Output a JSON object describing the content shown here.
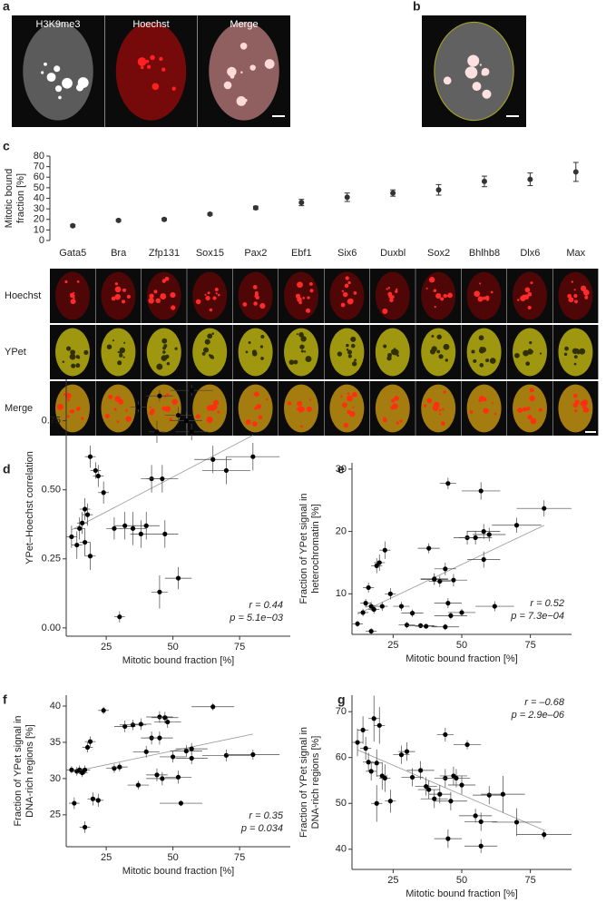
{
  "panel_labels": [
    "a",
    "b",
    "c",
    "d",
    "e",
    "f",
    "g"
  ],
  "images": {
    "a_labels": [
      "H3K9me3",
      "Hoechst",
      "Merge"
    ],
    "c_rows": [
      "Hoechst",
      "YPet",
      "Merge"
    ]
  },
  "chart_data": [
    {
      "type": "dot",
      "ylabel": [
        "Mitotic bound",
        "fraction [%]"
      ],
      "categories": [
        "Gata5",
        "Bra",
        "Zfp131",
        "Sox15",
        "Pax2",
        "Ebf1",
        "Six6",
        "Duxbl",
        "Sox2",
        "Bhlhb8",
        "Dlx6",
        "Max"
      ],
      "values": [
        14,
        19,
        20,
        25,
        31,
        36,
        41,
        45,
        48,
        56,
        58,
        65
      ],
      "errors": [
        1,
        1,
        1,
        1,
        1.5,
        3,
        4,
        3,
        5,
        5,
        6,
        9
      ],
      "color": "#333333",
      "ylim": [
        0,
        80
      ],
      "yticks": [
        0,
        10,
        20,
        30,
        40,
        50,
        60,
        70,
        80
      ]
    },
    {
      "type": "scatter",
      "xlabel": "Mitotic bound fraction [%]",
      "ylabel": [
        "YPet–Hoechst correlation"
      ],
      "x": [
        12,
        14,
        15,
        16,
        17,
        17,
        18,
        19,
        19,
        21,
        22,
        24,
        28,
        30,
        32,
        35,
        37,
        38,
        40,
        42,
        44,
        45,
        45,
        46,
        47,
        52,
        52,
        55,
        57,
        57,
        65,
        70,
        80
      ],
      "y": [
        0.33,
        0.3,
        0.36,
        0.38,
        0.31,
        0.43,
        0.41,
        0.26,
        0.62,
        0.57,
        0.55,
        0.49,
        0.36,
        0.04,
        0.37,
        0.36,
        0.8,
        0.34,
        0.37,
        0.54,
        0.71,
        0.84,
        0.13,
        0.54,
        0.34,
        0.18,
        0.77,
        0.75,
        0.86,
        0.71,
        0.61,
        0.57,
        0.62
      ],
      "xerr": [
        2,
        2,
        2,
        2,
        2,
        2,
        2,
        2,
        2,
        2,
        2,
        2,
        3,
        2,
        4,
        5,
        3,
        4,
        5,
        4,
        3,
        5,
        3,
        6,
        5,
        5,
        5,
        6,
        8,
        6,
        7,
        9,
        10
      ],
      "yerr": [
        0.04,
        0.05,
        0.04,
        0.04,
        0.05,
        0.04,
        0.04,
        0.05,
        0.04,
        0.03,
        0.04,
        0.04,
        0.04,
        0.02,
        0.05,
        0.06,
        0.02,
        0.05,
        0.05,
        0.05,
        0.04,
        0.02,
        0.06,
        0.05,
        0.05,
        0.04,
        0.03,
        0.03,
        0.02,
        0.03,
        0.05,
        0.05,
        0.05
      ],
      "color": "#000000",
      "xlim": [
        10,
        94
      ],
      "ylim": [
        -0.03,
        0.9
      ],
      "xticks": [
        25,
        50,
        75
      ],
      "yticks": [
        {
          "value": 0,
          "label": "0.00"
        },
        0.25,
        {
          "value": 0.5,
          "label": "0.50"
        },
        0.75
      ],
      "annotations": [
        "r = 0.44",
        "p = 5.1e−03"
      ]
    },
    {
      "type": "scatter",
      "xlabel": "Mitotic bound fraction [%]",
      "ylabel": [
        "Fraction of YPet signal in",
        "heterochromatin [%]"
      ],
      "x": [
        12,
        14,
        15,
        16,
        17,
        17,
        18,
        19,
        20,
        21,
        22,
        24,
        28,
        30,
        32,
        35,
        37,
        38,
        40,
        40,
        42,
        44,
        44,
        45,
        45,
        46,
        47,
        50,
        52,
        55,
        57,
        58,
        58,
        60,
        62,
        70,
        80
      ],
      "y": [
        5.2,
        7,
        8.5,
        11,
        4,
        8,
        7.5,
        14.5,
        15,
        8,
        17,
        10,
        8,
        5,
        6.9,
        4.9,
        4.8,
        17.3,
        12.3,
        12.4,
        12,
        14,
        4.7,
        8.5,
        27.7,
        6.5,
        12.2,
        7,
        19,
        19,
        26.5,
        20,
        15.5,
        19.5,
        8,
        21,
        23.7
      ],
      "xerr": [
        2,
        2,
        2,
        2,
        2,
        2,
        2,
        2,
        2,
        2,
        2,
        2,
        3,
        3,
        4,
        5,
        4,
        4,
        5,
        5,
        4,
        4,
        5,
        5,
        3,
        6,
        5,
        5,
        5,
        6,
        7,
        6,
        6,
        6,
        7,
        9,
        10
      ],
      "yerr": [
        0.5,
        0.6,
        0.7,
        0.8,
        0.5,
        0.7,
        0.7,
        1.2,
        1.3,
        0.7,
        1.4,
        0.9,
        0.7,
        0.5,
        0.6,
        0.4,
        0.4,
        0.8,
        0.9,
        0.9,
        0.9,
        1,
        0.5,
        0.8,
        0.9,
        0.6,
        1,
        0.6,
        1.1,
        1.1,
        1.4,
        1.2,
        1.3,
        1.1,
        0.8,
        1.2,
        1.3
      ],
      "color": "#000000",
      "xlim": [
        10,
        90
      ],
      "ylim": [
        3.5,
        31
      ],
      "xticks": [
        25,
        50,
        75
      ],
      "yticks": [
        10,
        20,
        30
      ],
      "annotations": [
        "r = 0.52",
        "p = 7.3e−04"
      ]
    },
    {
      "type": "scatter",
      "xlabel": "Mitotic bound fraction [%]",
      "ylabel": [
        "Fraction of YPet signal in",
        "DNA-rich regions [%]"
      ],
      "x": [
        12,
        13,
        14,
        15,
        16,
        17,
        17,
        18,
        19,
        20,
        22,
        24,
        28,
        30,
        32,
        35,
        37,
        38,
        40,
        42,
        44,
        45,
        45,
        46,
        47,
        48,
        50,
        52,
        53,
        55,
        57,
        57,
        65,
        70,
        80
      ],
      "y": [
        31.2,
        26.6,
        31,
        31.2,
        30.8,
        23.3,
        31.2,
        34.3,
        35.1,
        27.2,
        27,
        39.4,
        31.4,
        31.6,
        37.2,
        37.4,
        29.1,
        37.5,
        33.7,
        35.6,
        30.5,
        38.5,
        35.6,
        30,
        38.4,
        37.8,
        33,
        30.2,
        26.6,
        33.8,
        34.1,
        32.8,
        39.9,
        33.2,
        33.3
      ],
      "xerr": [
        2,
        2,
        2,
        2,
        2,
        2,
        2,
        2,
        2,
        2,
        2,
        2,
        3,
        3,
        4,
        5,
        4,
        4,
        5,
        4,
        4,
        5,
        5,
        6,
        5,
        5,
        5,
        5,
        8,
        6,
        6,
        6,
        8,
        9,
        10
      ],
      "yerr": [
        0.5,
        0.8,
        0.6,
        0.6,
        0.6,
        0.8,
        0.6,
        0.7,
        0.7,
        0.9,
        0.9,
        0.5,
        0.6,
        0.6,
        0.8,
        0.7,
        0.6,
        0.8,
        0.8,
        0.9,
        0.9,
        0.8,
        0.9,
        0.9,
        0.8,
        0.8,
        0.8,
        0.9,
        0.4,
        0.8,
        0.8,
        0.8,
        0.5,
        0.8,
        0.7
      ],
      "color": "#000000",
      "xlim": [
        10,
        94
      ],
      "ylim": [
        20.6,
        41.5
      ],
      "xticks": [
        25,
        50,
        75
      ],
      "yticks": [
        25,
        30,
        35,
        40
      ],
      "annotations": [
        "r = 0.35",
        "p = 0.034"
      ]
    },
    {
      "type": "scatter",
      "xlabel": "Mitotic bound fraction [%]",
      "ylabel": [
        "Fraction of YPet signal in",
        "DNA-rich regions [%]"
      ],
      "x": [
        12,
        14,
        15,
        16,
        17,
        18,
        19,
        19,
        20,
        21,
        22,
        24,
        28,
        30,
        32,
        35,
        37,
        38,
        40,
        42,
        44,
        44,
        45,
        46,
        47,
        48,
        50,
        52,
        55,
        57,
        57,
        60,
        65,
        70,
        80
      ],
      "y": [
        63.3,
        66,
        62,
        59,
        57,
        68.5,
        58.8,
        50,
        67,
        56,
        55.5,
        50.5,
        60.6,
        61.3,
        55.7,
        57.2,
        53.7,
        53,
        51,
        52,
        55.5,
        65,
        42.3,
        50.5,
        56,
        55.5,
        54,
        62.8,
        47.3,
        40.7,
        46,
        51.8,
        52,
        45.9,
        43.2
      ],
      "xerr": [
        2,
        2,
        2,
        2,
        2,
        2,
        2,
        2,
        2,
        2,
        2,
        2,
        3,
        3,
        4,
        5,
        4,
        4,
        5,
        4,
        4,
        3,
        5,
        6,
        5,
        5,
        5,
        5,
        6,
        6,
        6,
        6,
        8,
        9,
        10
      ],
      "yerr": [
        3,
        3,
        2.5,
        2,
        2,
        5,
        3,
        4,
        4,
        3,
        3,
        2.5,
        2,
        2,
        2,
        2,
        2,
        2,
        2,
        2,
        2,
        1.5,
        2,
        2,
        2,
        2,
        2,
        1,
        1.5,
        1.5,
        2,
        2,
        4,
        3,
        1
      ],
      "color": "#000000",
      "xlim": [
        10,
        90
      ],
      "ylim": [
        35.6,
        73.6
      ],
      "xticks": [
        25,
        50,
        75
      ],
      "yticks": [
        40,
        50,
        60,
        70
      ],
      "annotations": [
        "r = –0.68",
        "p = 2.9e–06"
      ]
    }
  ]
}
